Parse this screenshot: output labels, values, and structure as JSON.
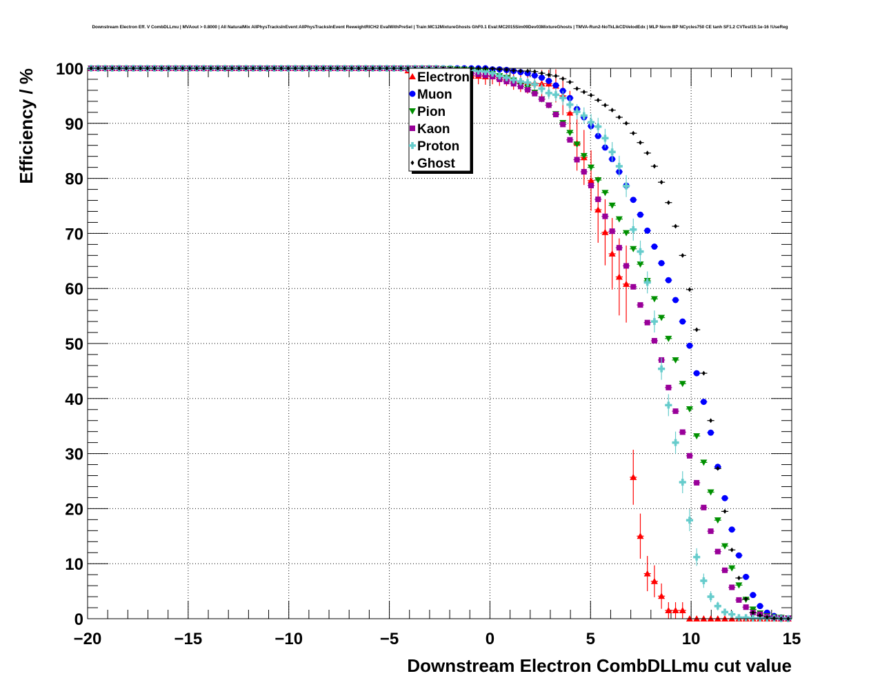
{
  "chart_data": {
    "type": "scatter",
    "title": "Downstream Electron Eff. V CombDLLmu | MVAout > 0.8000 | All NaturalMix AllPhysTracksInEvent:AllPhysTracksInEvent ReweightRICH2 EvalWithPreSel | Train:MC12MixtureGhosts GhF0.1 Eval:MC2015Sim09Dev03MixtureGhosts | TMVA-Run2-NoTkLikCDVelodEdx | MLP Norm BP NCycles750 CE tanh SF1.2 CVTest15:1e-16 !UseReg",
    "xlabel": "Downstream Electron CombDLLmu cut value",
    "ylabel": "Efficiency / %",
    "xlim": [
      -20,
      15
    ],
    "ylim": [
      0,
      100
    ],
    "grid": true,
    "legend_position": "top-center",
    "xticks": [
      "−20",
      "−15",
      "−10",
      "−5",
      "0",
      "5",
      "10",
      "15"
    ],
    "xtick_values": [
      -20,
      -15,
      -10,
      -5,
      0,
      5,
      10,
      15
    ],
    "yticks": [
      "0",
      "10",
      "20",
      "30",
      "40",
      "50",
      "60",
      "70",
      "80",
      "90",
      "100"
    ],
    "ytick_values": [
      0,
      10,
      20,
      30,
      40,
      50,
      60,
      70,
      80,
      90,
      100
    ],
    "bin_start": -20,
    "bin_width": 0.35,
    "series": [
      {
        "name": "Electron",
        "color": "#ff0000",
        "marker": "triangle-up",
        "values": [
          100,
          100,
          100,
          100,
          100,
          100,
          100,
          100,
          100,
          100,
          100,
          100,
          100,
          100,
          100,
          100,
          100,
          100,
          100,
          100,
          100,
          100,
          100,
          100,
          100,
          100,
          100,
          100,
          100,
          100,
          100,
          100,
          100,
          100,
          100,
          100,
          100,
          100,
          100,
          100,
          100,
          100,
          100,
          100,
          100,
          99.6,
          99.4,
          99.2,
          99.1,
          99.0,
          98.9,
          98.8,
          98.8,
          98.7,
          98.6,
          98.6,
          98.5,
          98.6,
          98.3,
          98.3,
          97.9,
          97.7,
          97.4,
          97.3,
          97.2,
          97.2,
          96.8,
          95.0,
          91.9,
          86.4,
          83.8,
          79.6,
          74.3,
          70.2,
          66.3,
          62.1,
          60.8,
          25.7,
          15.0,
          8.2,
          6.8,
          4.1,
          1.5,
          1.5,
          1.5,
          0,
          0,
          0,
          0,
          0,
          0,
          0,
          0,
          0,
          0,
          0,
          0,
          0,
          0,
          0
        ],
        "errors": [
          0,
          0,
          0,
          0,
          0,
          0,
          0,
          0,
          0,
          0,
          0,
          0,
          0,
          0,
          0,
          0,
          0,
          0,
          0,
          0,
          0,
          0,
          0,
          0,
          0,
          0,
          0,
          0,
          0,
          0,
          0,
          0,
          0,
          0,
          0,
          0,
          0,
          0,
          0,
          0,
          0,
          0,
          0,
          0,
          0,
          0.5,
          0.6,
          0.7,
          0.8,
          0.9,
          1.0,
          1.1,
          1.2,
          1.3,
          1.4,
          1.5,
          1.5,
          1.5,
          1.5,
          1.5,
          1.8,
          2.0,
          2.0,
          2.2,
          2.5,
          2.5,
          3.0,
          3.5,
          4.0,
          5.0,
          5.0,
          5.5,
          6.0,
          6.0,
          6.5,
          7.0,
          7.0,
          5.0,
          4.1,
          3.2,
          2.9,
          2.3,
          1.5,
          1.5,
          1.5,
          0,
          0,
          0,
          0,
          0,
          0,
          0,
          0,
          0,
          0,
          0,
          0,
          0,
          0,
          0
        ]
      },
      {
        "name": "Muon",
        "color": "#0000ff",
        "marker": "circle",
        "values": [
          100,
          100,
          100,
          100,
          100,
          100,
          100,
          100,
          100,
          100,
          100,
          100,
          100,
          100,
          100,
          100,
          100,
          100,
          100,
          100,
          100,
          100,
          100,
          100,
          100,
          100,
          100,
          100,
          100,
          100,
          100,
          100,
          100,
          100,
          100,
          100,
          100,
          100,
          100,
          100,
          100,
          100,
          100,
          100,
          100,
          100,
          100,
          100,
          100,
          100,
          100,
          100,
          100,
          100,
          100,
          100,
          100,
          99.8,
          99.8,
          99.7,
          99.5,
          99.3,
          99.1,
          98.7,
          98.3,
          97.7,
          96.9,
          95.9,
          94.6,
          92.6,
          91.1,
          89.5,
          87.7,
          85.6,
          83.5,
          81.2,
          78.7,
          76.1,
          73.4,
          70.5,
          67.6,
          64.6,
          61.5,
          57.9,
          54.0,
          49.6,
          44.6,
          39.4,
          33.8,
          27.6,
          21.9,
          16.2,
          11.5,
          7.6,
          4.3,
          2.3,
          1.1,
          0.5,
          0.2,
          0.1
        ]
      },
      {
        "name": "Pion",
        "color": "#009000",
        "marker": "triangle-down",
        "values": [
          100,
          100,
          100,
          100,
          100,
          100,
          100,
          100,
          100,
          100,
          100,
          100,
          100,
          100,
          100,
          100,
          100,
          100,
          100,
          100,
          100,
          100,
          100,
          100,
          100,
          100,
          100,
          100,
          100,
          100,
          100,
          100,
          100,
          100,
          100,
          100,
          100,
          100,
          100,
          100,
          100,
          100,
          100,
          100,
          100,
          100,
          100,
          100,
          100,
          100,
          99.9,
          99.9,
          99.8,
          99.8,
          99.7,
          99.6,
          99.4,
          99.0,
          98.6,
          98.3,
          97.8,
          97.2,
          96.5,
          95.6,
          94.4,
          93.3,
          91.7,
          90.1,
          88.3,
          86.2,
          84.1,
          82.0,
          79.7,
          77.4,
          75.1,
          72.6,
          70.1,
          67.2,
          64.4,
          61.4,
          58.1,
          54.7,
          50.9,
          47.0,
          42.7,
          38.1,
          33.2,
          28.4,
          23.0,
          17.9,
          13.2,
          9.2,
          6.1,
          3.5,
          1.7,
          1.0,
          0.5,
          0.3,
          0.2,
          0.1
        ]
      },
      {
        "name": "Kaon",
        "color": "#990099",
        "marker": "square",
        "values": [
          100,
          100,
          100,
          100,
          100,
          100,
          100,
          100,
          100,
          100,
          100,
          100,
          100,
          100,
          100,
          100,
          100,
          100,
          100,
          100,
          100,
          100,
          100,
          100,
          100,
          100,
          100,
          100,
          100,
          100,
          100,
          100,
          100,
          100,
          100,
          100,
          100,
          100,
          100,
          100,
          100,
          100,
          100,
          100,
          100,
          100,
          100,
          100,
          100,
          100,
          99.8,
          99.7,
          99.5,
          99.3,
          99.1,
          98.9,
          98.7,
          98.5,
          98.0,
          97.6,
          97.2,
          96.7,
          96.1,
          95.4,
          94.4,
          93.3,
          91.6,
          89.8,
          87.0,
          83.4,
          81.2,
          78.7,
          76.2,
          73.1,
          70.4,
          67.4,
          64.1,
          60.3,
          57.0,
          53.8,
          50.5,
          47.0,
          42.0,
          37.7,
          33.9,
          29.6,
          24.7,
          20.2,
          15.9,
          12.2,
          8.8,
          5.7,
          3.4,
          2.1,
          1.1,
          0.8,
          0.4,
          0.2,
          0.1,
          0.1
        ]
      },
      {
        "name": "Proton",
        "color": "#66cccc",
        "marker": "cross",
        "values": [
          100,
          100,
          100,
          100,
          100,
          100,
          100,
          100,
          100,
          100,
          100,
          100,
          100,
          100,
          100,
          100,
          100,
          100,
          100,
          100,
          100,
          100,
          100,
          100,
          100,
          100,
          100,
          100,
          100,
          100,
          100,
          100,
          100,
          100,
          100,
          100,
          100,
          100,
          100,
          100,
          100,
          100,
          100,
          100,
          100,
          100,
          100,
          100,
          100,
          100,
          99.9,
          99.9,
          99.8,
          99.7,
          99.6,
          99.5,
          99.4,
          99.1,
          98.6,
          98.3,
          97.9,
          97.6,
          97.4,
          97.1,
          96.3,
          95.5,
          95.2,
          94.6,
          93.4,
          92.1,
          91.4,
          90.2,
          89.4,
          87.3,
          84.8,
          82.2,
          78.6,
          70.7,
          66.7,
          61.1,
          54.0,
          45.4,
          38.8,
          32.0,
          24.8,
          17.9,
          11.2,
          6.9,
          4.0,
          2.3,
          1.2,
          0.8,
          0.2,
          0.2,
          0.1,
          0.1,
          0.1,
          0.1,
          0,
          0
        ],
        "errors": [
          0,
          0,
          0,
          0,
          0,
          0,
          0,
          0,
          0,
          0,
          0,
          0,
          0,
          0,
          0,
          0,
          0,
          0,
          0,
          0,
          0,
          0,
          0,
          0,
          0,
          0,
          0,
          0,
          0,
          0,
          0,
          0,
          0,
          0,
          0,
          0,
          0,
          0,
          0,
          0,
          0,
          0,
          0,
          0,
          0,
          0,
          0,
          0,
          0,
          0,
          0,
          0,
          0,
          0,
          0,
          0,
          0.3,
          0.4,
          0.5,
          0.6,
          0.7,
          0.8,
          0.9,
          1.0,
          1.0,
          1.1,
          1.2,
          1.3,
          1.3,
          1.4,
          1.5,
          1.5,
          1.6,
          1.7,
          1.8,
          1.9,
          2.0,
          2.0,
          2.0,
          2.0,
          2.0,
          2.0,
          2.0,
          2.0,
          2.0,
          2.0,
          1.6,
          1.3,
          1.0,
          0.8,
          0.5,
          0.4,
          0.2,
          0.2,
          0.1,
          0.1,
          0.1,
          0.1,
          0,
          0
        ]
      },
      {
        "name": "Ghost",
        "color": "#000000",
        "marker": "diamond",
        "values": [
          100,
          100,
          100,
          100,
          100,
          100,
          100,
          100,
          100,
          100,
          100,
          100,
          100,
          100,
          100,
          100,
          100,
          100,
          100,
          100,
          100,
          100,
          100,
          100,
          100,
          100,
          100,
          100,
          100,
          100,
          100,
          100,
          100,
          100,
          100,
          100,
          100,
          100,
          100,
          100,
          100,
          100,
          100,
          100,
          100,
          100,
          100,
          100,
          100,
          100,
          100,
          100,
          100,
          100,
          100,
          100,
          100,
          99.9,
          99.8,
          99.7,
          99.6,
          99.5,
          99.5,
          99.4,
          99.1,
          98.8,
          98.6,
          98.1,
          97.5,
          96.3,
          95.7,
          95.1,
          94.2,
          93.3,
          92.4,
          91.1,
          90.0,
          88.2,
          86.5,
          84.6,
          82.2,
          79.3,
          75.6,
          71.3,
          66.0,
          59.8,
          52.5,
          44.6,
          36.0,
          27.3,
          19.5,
          12.5,
          7.4,
          3.6,
          1.1,
          0.6,
          0.3,
          0.1,
          0,
          0
        ]
      }
    ]
  }
}
